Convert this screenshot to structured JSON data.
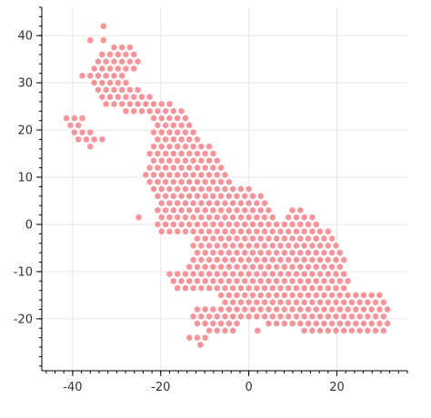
{
  "chart_data": {
    "type": "scatter",
    "title": "",
    "xlabel": "",
    "ylabel": "",
    "xlim": [
      -47,
      36
    ],
    "ylim": [
      -31,
      46
    ],
    "grid": true,
    "marker": "hexagon",
    "hex_spacing": 1.8,
    "x_ticks": [
      -40,
      -20,
      0,
      20
    ],
    "y_ticks": [
      40,
      30,
      20,
      10,
      0,
      -10,
      -20
    ],
    "x_tick_labels": [
      "-40",
      "-20",
      "0",
      "20"
    ],
    "y_tick_labels": [
      "40",
      "30",
      "20",
      "10",
      "0",
      "-10",
      "-20"
    ],
    "rows": [
      {
        "y": 42.0,
        "x_ranges": [
          [
            -33,
            -33
          ]
        ]
      },
      {
        "y": 39.0,
        "x_ranges": [
          [
            -36,
            -36
          ],
          [
            -33,
            -33
          ]
        ]
      },
      {
        "y": 37.5,
        "x_ranges": [
          [
            -31,
            -27
          ]
        ]
      },
      {
        "y": 36.0,
        "x_ranges": [
          [
            -34,
            -25
          ]
        ]
      },
      {
        "y": 34.5,
        "x_ranges": [
          [
            -35,
            -25
          ]
        ]
      },
      {
        "y": 33.0,
        "x_ranges": [
          [
            -36,
            -26
          ]
        ]
      },
      {
        "y": 31.5,
        "x_ranges": [
          [
            -38,
            -28
          ]
        ]
      },
      {
        "y": 30.0,
        "x_ranges": [
          [
            -36,
            -27
          ]
        ]
      },
      {
        "y": 28.5,
        "x_ranges": [
          [
            -35,
            -24
          ]
        ]
      },
      {
        "y": 27.0,
        "x_ranges": [
          [
            -34,
            -21
          ]
        ]
      },
      {
        "y": 25.5,
        "x_ranges": [
          [
            -33,
            -17
          ]
        ]
      },
      {
        "y": 24.0,
        "x_ranges": [
          [
            -29,
            -14
          ]
        ]
      },
      {
        "y": 22.5,
        "x_ranges": [
          [
            -43,
            -37
          ],
          [
            -23,
            -14
          ]
        ]
      },
      {
        "y": 21.0,
        "x_ranges": [
          [
            -42,
            -38
          ],
          [
            -22,
            -13
          ]
        ]
      },
      {
        "y": 19.5,
        "x_ranges": [
          [
            -41,
            -35
          ],
          [
            -22,
            -12
          ]
        ]
      },
      {
        "y": 18.0,
        "x_ranges": [
          [
            -39,
            -33
          ],
          [
            -22,
            -11
          ]
        ]
      },
      {
        "y": 16.5,
        "x_ranges": [
          [
            -36,
            -36
          ],
          [
            -23,
            -9
          ]
        ]
      },
      {
        "y": 15.0,
        "x_ranges": [
          [
            -23,
            -8
          ]
        ]
      },
      {
        "y": 13.5,
        "x_ranges": [
          [
            -23,
            -6
          ]
        ]
      },
      {
        "y": 12.0,
        "x_ranges": [
          [
            -23,
            -5
          ]
        ]
      },
      {
        "y": 10.5,
        "x_ranges": [
          [
            -24,
            -4
          ]
        ]
      },
      {
        "y": 9.0,
        "x_ranges": [
          [
            -23,
            -3
          ]
        ]
      },
      {
        "y": 7.5,
        "x_ranges": [
          [
            -23,
            1
          ]
        ]
      },
      {
        "y": 6.0,
        "x_ranges": [
          [
            -22,
            3
          ]
        ]
      },
      {
        "y": 4.5,
        "x_ranges": [
          [
            -21,
            4
          ]
        ]
      },
      {
        "y": 3.0,
        "x_ranges": [
          [
            -21,
            6
          ],
          [
            9,
            13
          ]
        ]
      },
      {
        "y": 1.5,
        "x_ranges": [
          [
            -25,
            -25
          ],
          [
            -21,
            6
          ],
          [
            9,
            16
          ]
        ]
      },
      {
        "y": 0.0,
        "x_ranges": [
          [
            -21,
            17
          ]
        ]
      },
      {
        "y": -1.5,
        "x_ranges": [
          [
            -21,
            18
          ]
        ]
      },
      {
        "y": -3.0,
        "x_ranges": [
          [
            -13,
            19
          ]
        ]
      },
      {
        "y": -4.5,
        "x_ranges": [
          [
            -13,
            20
          ]
        ]
      },
      {
        "y": -6.0,
        "x_ranges": [
          [
            -13,
            21
          ]
        ]
      },
      {
        "y": -7.5,
        "x_ranges": [
          [
            -14,
            22
          ]
        ]
      },
      {
        "y": -9.0,
        "x_ranges": [
          [
            -15,
            22
          ]
        ]
      },
      {
        "y": -10.5,
        "x_ranges": [
          [
            -19,
            22
          ]
        ]
      },
      {
        "y": -12.0,
        "x_ranges": [
          [
            -18,
            23
          ]
        ]
      },
      {
        "y": -13.5,
        "x_ranges": [
          [
            -17,
            22
          ]
        ]
      },
      {
        "y": -15.0,
        "x_ranges": [
          [
            -8,
            31
          ]
        ]
      },
      {
        "y": -16.5,
        "x_ranges": [
          [
            -7,
            32
          ]
        ]
      },
      {
        "y": -18.0,
        "x_ranges": [
          [
            -13,
            33
          ]
        ]
      },
      {
        "y": -19.5,
        "x_ranges": [
          [
            -13,
            32
          ]
        ]
      },
      {
        "y": -21.0,
        "x_ranges": [
          [
            -13,
            -1
          ],
          [
            4,
            33
          ]
        ]
      },
      {
        "y": -22.5,
        "x_ranges": [
          [
            -13,
            -14
          ],
          [
            -10,
            -3
          ],
          [
            2,
            2
          ],
          [
            11,
            31
          ]
        ]
      },
      {
        "y": -24.0,
        "x_ranges": [
          [
            -15,
            -9
          ]
        ]
      },
      {
        "y": -25.5,
        "x_ranges": [
          [
            -11,
            -11
          ]
        ]
      }
    ],
    "colors": {
      "marker": "#f4949b",
      "grid": "#e6e6e6",
      "axis": "#000000",
      "background": "#ffffff"
    }
  }
}
